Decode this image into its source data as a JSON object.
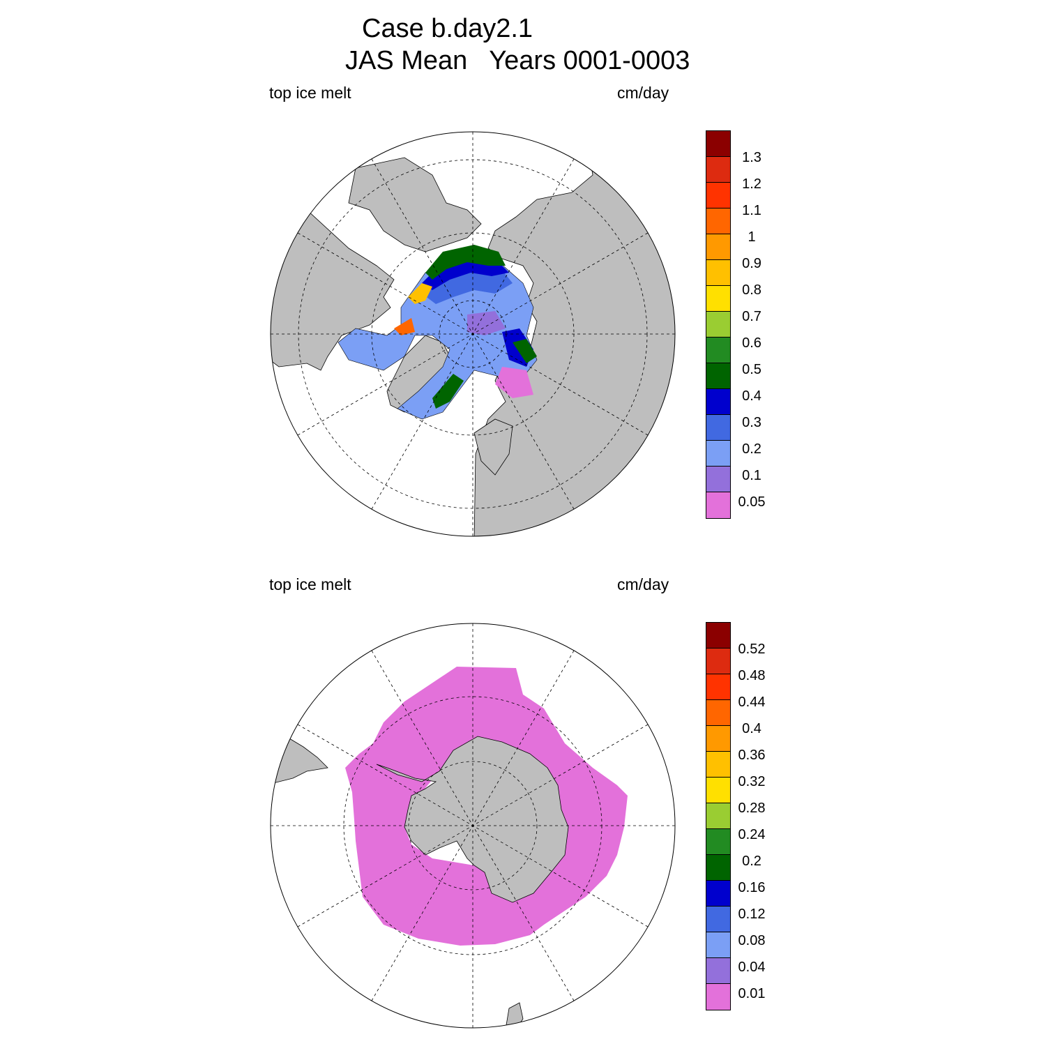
{
  "title": {
    "line1": "Case b.day2.1",
    "line2": "JAS Mean   Years 0001-0003"
  },
  "colors": {
    "land": "#bebebe",
    "palette": [
      "#e371da",
      "#9370db",
      "#7b9ff5",
      "#4169e1",
      "#0000cd",
      "#006400",
      "#228b22",
      "#9acd32",
      "#ffe000",
      "#ffc000",
      "#ff9900",
      "#ff6600",
      "#ff3300",
      "#dd2b10",
      "#8b0000"
    ]
  },
  "panels": [
    {
      "name": "arctic",
      "left_label": "top ice melt",
      "right_label": "cm/day",
      "legend_labels": [
        "1.3",
        "1.2",
        "1.1",
        "1",
        "0.9",
        "0.8",
        "0.7",
        "0.6",
        "0.5",
        "0.4",
        "0.3",
        "0.2",
        "0.1",
        "0.05"
      ]
    },
    {
      "name": "antarctic",
      "left_label": "top ice melt",
      "right_label": "cm/day",
      "legend_labels": [
        "0.52",
        "0.48",
        "0.44",
        "0.4",
        "0.36",
        "0.32",
        "0.28",
        "0.24",
        "0.2",
        "0.16",
        "0.12",
        "0.08",
        "0.04",
        "0.01"
      ]
    }
  ]
}
